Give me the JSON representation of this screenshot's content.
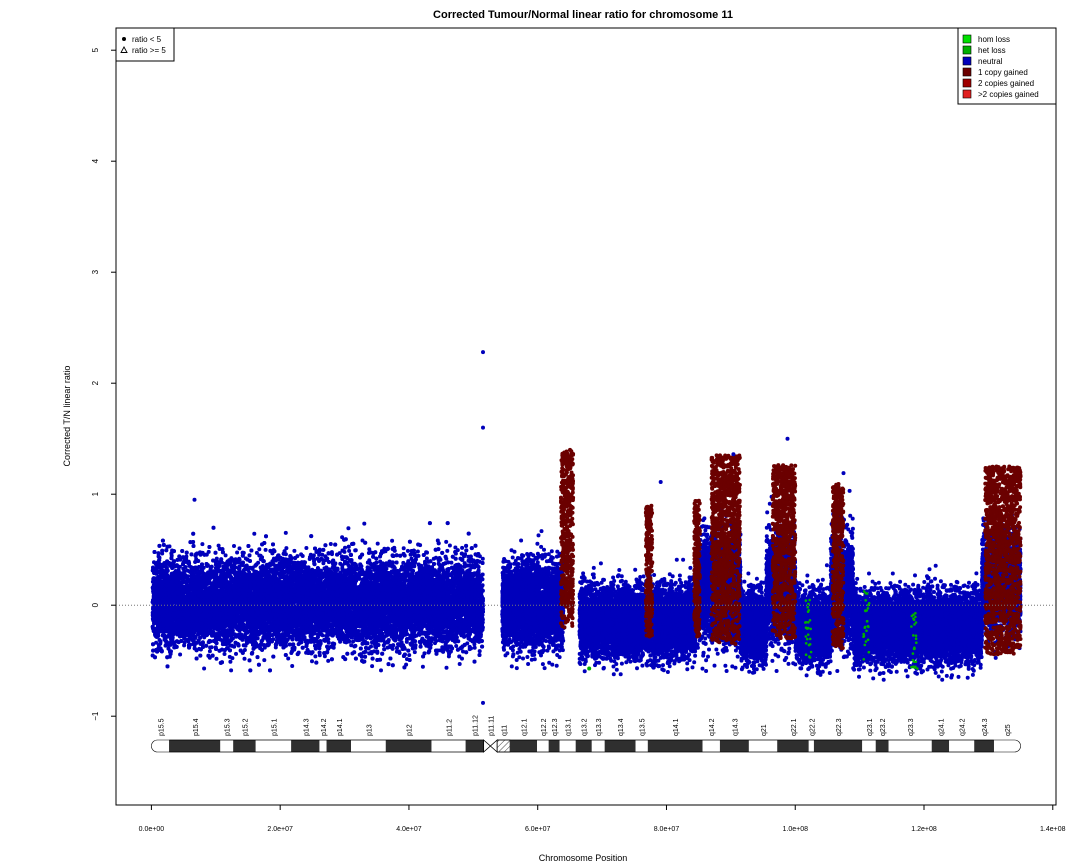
{
  "chart_data": {
    "type": "scatter",
    "title": "Corrected Tumour/Normal linear ratio for chromosome  11",
    "xlabel": "Chromosome Position",
    "ylabel": "Corrected T/N linear ratio",
    "xlim": [
      -5500000,
      140500000
    ],
    "ylim": [
      -1.8,
      5.2
    ],
    "x_ticks": [
      0,
      20000000,
      40000000,
      60000000,
      80000000,
      100000000,
      120000000,
      140000000
    ],
    "x_tick_labels": [
      "0.0e+00",
      "2.0e+07",
      "4.0e+07",
      "6.0e+07",
      "8.0e+07",
      "1.0e+08",
      "1.2e+08",
      "1.4e+08"
    ],
    "y_ticks": [
      -1,
      0,
      1,
      2,
      3,
      4,
      5
    ],
    "y_tick_labels": [
      "−1",
      "0",
      "1",
      "2",
      "3",
      "4",
      "5"
    ],
    "reference_line_y": 0,
    "shape_legend": {
      "placement": "top-left",
      "items": [
        {
          "label": "ratio < 5",
          "symbol": "filled-circle"
        },
        {
          "label": "ratio >= 5",
          "symbol": "open-triangle"
        }
      ]
    },
    "color_legend": {
      "placement": "top-right",
      "items": [
        {
          "label": "hom loss",
          "color": "#00e000"
        },
        {
          "label": "het loss",
          "color": "#00b000"
        },
        {
          "label": "neutral",
          "color": "#0000bb"
        },
        {
          "label": "1 copy gained",
          "color": "#6b0000"
        },
        {
          "label": "2 copies gained",
          "color": "#a00000"
        },
        {
          "label": ">2 copies gained",
          "color": "#e02020"
        }
      ]
    },
    "point_clouds": [
      {
        "state": "neutral",
        "x_range": [
          200000,
          51500000
        ],
        "center": 0.02,
        "spread": 0.45
      },
      {
        "state": "neutral",
        "x_range": [
          54500000,
          64000000
        ],
        "center": 0.0,
        "spread": 0.42
      },
      {
        "state": "neutral",
        "x_range": [
          66500000,
          84500000
        ],
        "center": -0.15,
        "spread": 0.35
      },
      {
        "state": "neutral",
        "x_range": [
          84500000,
          91500000
        ],
        "center": 0.15,
        "spread": 0.55
      },
      {
        "state": "neutral",
        "x_range": [
          91500000,
          95500000
        ],
        "center": -0.2,
        "spread": 0.35
      },
      {
        "state": "neutral",
        "x_range": [
          95500000,
          100000000
        ],
        "center": 0.15,
        "spread": 0.55
      },
      {
        "state": "neutral",
        "x_range": [
          100000000,
          105500000
        ],
        "center": -0.2,
        "spread": 0.35
      },
      {
        "state": "neutral",
        "x_range": [
          105500000,
          109000000
        ],
        "center": 0.15,
        "spread": 0.55
      },
      {
        "state": "neutral",
        "x_range": [
          109000000,
          129000000
        ],
        "center": -0.2,
        "spread": 0.35
      },
      {
        "state": "neutral",
        "x_range": [
          129000000,
          135000000
        ],
        "center": 0.2,
        "spread": 0.5
      }
    ],
    "gained_regions": [
      {
        "x_range": [
          63600000,
          65500000
        ],
        "y_range": [
          -0.2,
          1.4
        ]
      },
      {
        "x_range": [
          76800000,
          77800000
        ],
        "y_range": [
          -0.3,
          0.9
        ]
      },
      {
        "x_range": [
          84300000,
          85200000
        ],
        "y_range": [
          -0.3,
          0.95
        ]
      },
      {
        "x_range": [
          87000000,
          91400000
        ],
        "y_range": [
          -0.35,
          1.35
        ]
      },
      {
        "x_range": [
          96500000,
          100000000
        ],
        "y_range": [
          -0.3,
          1.27
        ]
      },
      {
        "x_range": [
          105800000,
          107500000
        ],
        "y_range": [
          -0.4,
          1.1
        ]
      },
      {
        "x_range": [
          129500000,
          135000000
        ],
        "y_range": [
          -0.45,
          1.25
        ]
      }
    ],
    "loss_regions": [
      {
        "x_range": [
          101500000,
          102500000
        ],
        "y_range": [
          -0.5,
          0.15
        ]
      },
      {
        "x_range": [
          110500000,
          111500000
        ],
        "y_range": [
          -0.5,
          0.15
        ]
      },
      {
        "x_range": [
          118000000,
          119000000
        ],
        "y_range": [
          -0.6,
          0.2
        ]
      }
    ],
    "outlier_points": [
      {
        "x": 51500000,
        "y": 2.28
      },
      {
        "x": 51500000,
        "y": 1.6
      },
      {
        "x": 51500000,
        "y": -0.88
      },
      {
        "x": 98800000,
        "y": 1.5
      },
      {
        "x": 90400000,
        "y": 1.36
      },
      {
        "x": 79100000,
        "y": 1.11
      },
      {
        "x": 107500000,
        "y": 1.19
      },
      {
        "x": 6700000,
        "y": 0.95
      },
      {
        "x": 68000000,
        "y": -0.57
      }
    ],
    "ideogram": {
      "chrom_length": 135000000,
      "bands": [
        {
          "name": "p15.5",
          "start": 0,
          "end": 2800000,
          "stain": "gneg"
        },
        {
          "name": "p15.4",
          "start": 2800000,
          "end": 10700000,
          "stain": "gpos"
        },
        {
          "name": "p15.3",
          "start": 10700000,
          "end": 12700000,
          "stain": "gneg"
        },
        {
          "name": "p15.2",
          "start": 12700000,
          "end": 16200000,
          "stain": "gpos"
        },
        {
          "name": "p15.1",
          "start": 16200000,
          "end": 21700000,
          "stain": "gneg"
        },
        {
          "name": "p14.3",
          "start": 21700000,
          "end": 26100000,
          "stain": "gpos"
        },
        {
          "name": "p14.2",
          "start": 26100000,
          "end": 27200000,
          "stain": "gneg"
        },
        {
          "name": "p14.1",
          "start": 27200000,
          "end": 31000000,
          "stain": "gpos"
        },
        {
          "name": "p13",
          "start": 31000000,
          "end": 36400000,
          "stain": "gneg"
        },
        {
          "name": "p12",
          "start": 36400000,
          "end": 43500000,
          "stain": "gpos"
        },
        {
          "name": "p11.2",
          "start": 43500000,
          "end": 48800000,
          "stain": "gneg"
        },
        {
          "name": "p11.12",
          "start": 48800000,
          "end": 51600000,
          "stain": "gpos"
        },
        {
          "name": "p11.11",
          "start": 51600000,
          "end": 53700000,
          "stain": "acen"
        },
        {
          "name": "q11",
          "start": 53700000,
          "end": 55700000,
          "stain": "gvar"
        },
        {
          "name": "q12.1",
          "start": 55700000,
          "end": 59900000,
          "stain": "gpos"
        },
        {
          "name": "q12.2",
          "start": 59900000,
          "end": 61700000,
          "stain": "gneg"
        },
        {
          "name": "q12.3",
          "start": 61700000,
          "end": 63400000,
          "stain": "gpos"
        },
        {
          "name": "q13.1",
          "start": 63400000,
          "end": 65900000,
          "stain": "gneg"
        },
        {
          "name": "q13.2",
          "start": 65900000,
          "end": 68400000,
          "stain": "gpos"
        },
        {
          "name": "q13.3",
          "start": 68400000,
          "end": 70400000,
          "stain": "gneg"
        },
        {
          "name": "q13.4",
          "start": 70400000,
          "end": 75200000,
          "stain": "gpos"
        },
        {
          "name": "q13.5",
          "start": 75200000,
          "end": 77100000,
          "stain": "gneg"
        },
        {
          "name": "q14.1",
          "start": 77100000,
          "end": 85600000,
          "stain": "gpos"
        },
        {
          "name": "q14.2",
          "start": 85600000,
          "end": 88300000,
          "stain": "gneg"
        },
        {
          "name": "q14.3",
          "start": 88300000,
          "end": 92800000,
          "stain": "gpos"
        },
        {
          "name": "q21",
          "start": 92800000,
          "end": 97200000,
          "stain": "gneg"
        },
        {
          "name": "q22.1",
          "start": 97200000,
          "end": 102100000,
          "stain": "gpos"
        },
        {
          "name": "q22.2",
          "start": 102100000,
          "end": 102900000,
          "stain": "gneg"
        },
        {
          "name": "q22.3",
          "start": 102900000,
          "end": 110400000,
          "stain": "gpos"
        },
        {
          "name": "q23.1",
          "start": 110400000,
          "end": 112500000,
          "stain": "gneg"
        },
        {
          "name": "q23.2",
          "start": 112500000,
          "end": 114500000,
          "stain": "gpos"
        },
        {
          "name": "q23.3",
          "start": 114500000,
          "end": 121200000,
          "stain": "gneg"
        },
        {
          "name": "q24.1",
          "start": 121200000,
          "end": 123900000,
          "stain": "gpos"
        },
        {
          "name": "q24.2",
          "start": 123900000,
          "end": 127800000,
          "stain": "gneg"
        },
        {
          "name": "q24.3",
          "start": 127800000,
          "end": 130800000,
          "stain": "gpos"
        },
        {
          "name": "q25",
          "start": 130800000,
          "end": 135000000,
          "stain": "gneg"
        }
      ]
    }
  }
}
